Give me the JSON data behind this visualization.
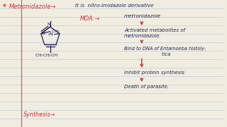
{
  "bg_color": "#f0ede0",
  "line_color": "#b8cce0",
  "title_star": "*",
  "title_main": "Metronidazole→",
  "title_sub": "It is  nitro-imidazole derivative",
  "moa_label": "MOA:→",
  "flow": [
    "metronidazole",
    "Activated metabolites of\nmetronidazole.",
    "Bind to DNA of Entamoeba histoly-\n                         tica",
    "Inhibit protein synthesis",
    "Death of parasite."
  ],
  "synthesis_label": "Synthesis→",
  "title_color": "#cc3333",
  "text_color": "#222255",
  "moa_color": "#cc3333",
  "synthesis_color": "#cc3333",
  "arrow_color": "#bb4444",
  "margin_color": "#cc4444",
  "struct_color": "#222255"
}
